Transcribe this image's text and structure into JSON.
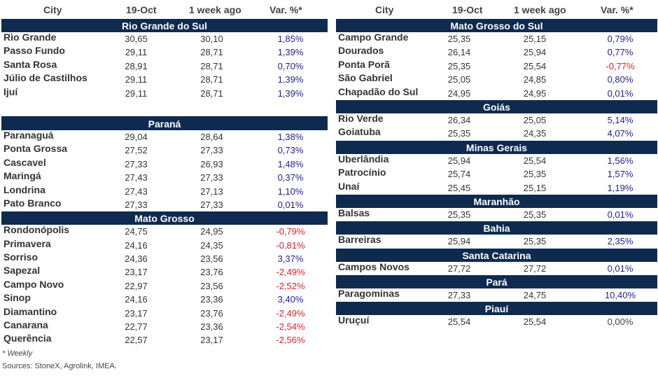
{
  "columns": {
    "city": "City",
    "current": "19-Oct",
    "week": "1 week ago",
    "var": "Var. %*"
  },
  "left": [
    {
      "region": "Rio Grande do Sul",
      "rows": [
        {
          "city": "Rio Grande",
          "current": "30,65",
          "week": "30,10",
          "var": "1,85%",
          "sign": "pos"
        },
        {
          "city": "Passo Fundo",
          "current": "29,11",
          "week": "28,71",
          "var": "1,39%",
          "sign": "pos"
        },
        {
          "city": "Santa Rosa",
          "current": "28,91",
          "week": "28,71",
          "var": "0,70%",
          "sign": "pos"
        },
        {
          "city": "Júlio de Castilhos",
          "current": "29,11",
          "week": "28,71",
          "var": "1,39%",
          "sign": "pos"
        },
        {
          "city": "Ijuí",
          "current": "29,11",
          "week": "28,71",
          "var": "1,39%",
          "sign": "pos"
        }
      ]
    },
    {
      "region": "Paraná",
      "rows": [
        {
          "city": "Paranaguá",
          "current": "29,04",
          "week": "28,64",
          "var": "1,38%",
          "sign": "pos"
        },
        {
          "city": "Ponta Grossa",
          "current": "27,52",
          "week": "27,33",
          "var": "0,73%",
          "sign": "pos"
        },
        {
          "city": "Cascavel",
          "current": "27,33",
          "week": "26,93",
          "var": "1,48%",
          "sign": "pos"
        },
        {
          "city": "Maringá",
          "current": "27,43",
          "week": "27,33",
          "var": "0,37%",
          "sign": "pos"
        },
        {
          "city": "Londrina",
          "current": "27,43",
          "week": "27,13",
          "var": "1,10%",
          "sign": "pos"
        },
        {
          "city": "Pato Branco",
          "current": "27,33",
          "week": "27,33",
          "var": "0,01%",
          "sign": "pos"
        }
      ]
    },
    {
      "region": "Mato Grosso",
      "rows": [
        {
          "city": "Rondonópolis",
          "current": "24,75",
          "week": "24,95",
          "var": "-0,79%",
          "sign": "neg"
        },
        {
          "city": "Primavera",
          "current": "24,16",
          "week": "24,35",
          "var": "-0,81%",
          "sign": "neg"
        },
        {
          "city": "Sorriso",
          "current": "24,36",
          "week": "23,56",
          "var": "3,37%",
          "sign": "pos"
        },
        {
          "city": "Sapezal",
          "current": "23,17",
          "week": "23,76",
          "var": "-2,49%",
          "sign": "neg"
        },
        {
          "city": "Campo Novo",
          "current": "22,97",
          "week": "23,56",
          "var": "-2,52%",
          "sign": "neg"
        },
        {
          "city": "Sinop",
          "current": "24,16",
          "week": "23,36",
          "var": "3,40%",
          "sign": "pos"
        },
        {
          "city": "Diamantino",
          "current": "23,17",
          "week": "23,76",
          "var": "-2,49%",
          "sign": "neg"
        },
        {
          "city": "Canarana",
          "current": "22,77",
          "week": "23,36",
          "var": "-2,54%",
          "sign": "neg"
        },
        {
          "city": "Querência",
          "current": "22,57",
          "week": "23,17",
          "var": "-2,56%",
          "sign": "neg"
        }
      ]
    }
  ],
  "right": [
    {
      "region": "Mato Grosso do Sul",
      "rows": [
        {
          "city": "Campo Grande",
          "current": "25,35",
          "week": "25,15",
          "var": "0,79%",
          "sign": "pos"
        },
        {
          "city": "Dourados",
          "current": "26,14",
          "week": "25,94",
          "var": "0,77%",
          "sign": "pos"
        },
        {
          "city": "Ponta Porã",
          "current": "25,35",
          "week": "25,54",
          "var": "-0,77%",
          "sign": "neg"
        },
        {
          "city": "São Gabriel",
          "current": "25,05",
          "week": "24,85",
          "var": "0,80%",
          "sign": "pos"
        },
        {
          "city": "Chapadão do Sul",
          "current": "24,95",
          "week": "24,95",
          "var": "0,01%",
          "sign": "pos"
        }
      ]
    },
    {
      "region": "Goiás",
      "rows": [
        {
          "city": "Rio Verde",
          "current": "26,34",
          "week": "25,05",
          "var": "5,14%",
          "sign": "pos"
        },
        {
          "city": "Goiatuba",
          "current": "25,35",
          "week": "24,35",
          "var": "4,07%",
          "sign": "pos"
        }
      ]
    },
    {
      "region": "Minas Gerais",
      "rows": [
        {
          "city": "Uberlândia",
          "current": "25,94",
          "week": "25,54",
          "var": "1,56%",
          "sign": "pos"
        },
        {
          "city": "Patrocínio",
          "current": "25,74",
          "week": "25,35",
          "var": "1,57%",
          "sign": "pos"
        },
        {
          "city": "Unaí",
          "current": "25,45",
          "week": "25,15",
          "var": "1,19%",
          "sign": "pos"
        }
      ]
    },
    {
      "region": "Maranhão",
      "rows": [
        {
          "city": "Balsas",
          "current": "25,35",
          "week": "25,35",
          "var": "0,01%",
          "sign": "pos"
        }
      ]
    },
    {
      "region": "Bahia",
      "rows": [
        {
          "city": "Barreiras",
          "current": "25,94",
          "week": "25,35",
          "var": "2,35%",
          "sign": "pos"
        }
      ]
    },
    {
      "region": "Santa Catarina",
      "rows": [
        {
          "city": "Campos Novos",
          "current": "27,72",
          "week": "27,72",
          "var": "0,01%",
          "sign": "pos"
        }
      ]
    },
    {
      "region": "Pará",
      "rows": [
        {
          "city": "Paragominas",
          "current": "27,33",
          "week": "24,75",
          "var": "10,40%",
          "sign": "pos"
        }
      ]
    },
    {
      "region": "Piauí",
      "rows": [
        {
          "city": "Uruçuí",
          "current": "25,54",
          "week": "25,54",
          "var": "0,00%",
          "sign": "zero"
        }
      ]
    }
  ],
  "footnote": "* Weekly",
  "sources": "Sources: StoneX, Agrolink, IMEA."
}
